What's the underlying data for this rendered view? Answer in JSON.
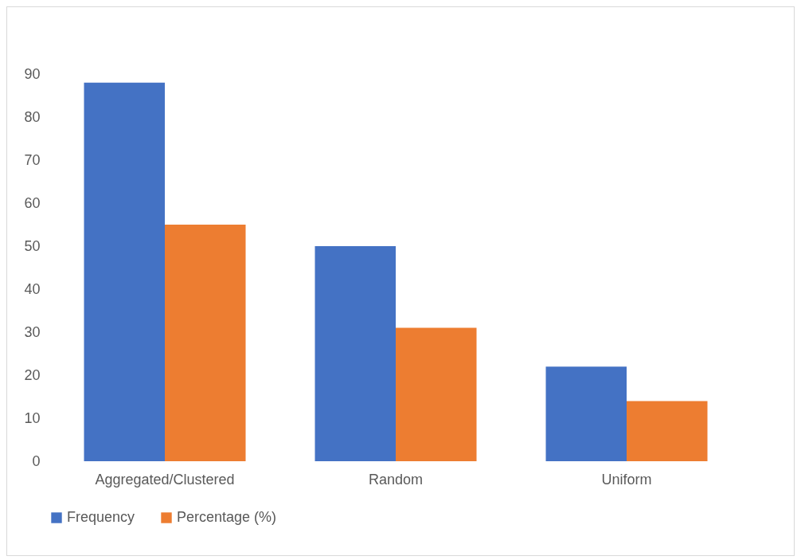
{
  "chart_data": {
    "type": "bar",
    "categories": [
      "Aggregated/Clustered",
      "Random",
      "Uniform"
    ],
    "series": [
      {
        "name": "Frequency",
        "color": "#4472c4",
        "values": [
          88,
          50,
          22
        ]
      },
      {
        "name": "Percentage (%)",
        "color": "#ed7d31",
        "values": [
          55,
          31,
          14
        ]
      }
    ],
    "ylim": [
      0,
      90
    ],
    "yticks": [
      0,
      10,
      20,
      30,
      40,
      50,
      60,
      70,
      80,
      90
    ],
    "grid": false,
    "legend": "bottom"
  }
}
